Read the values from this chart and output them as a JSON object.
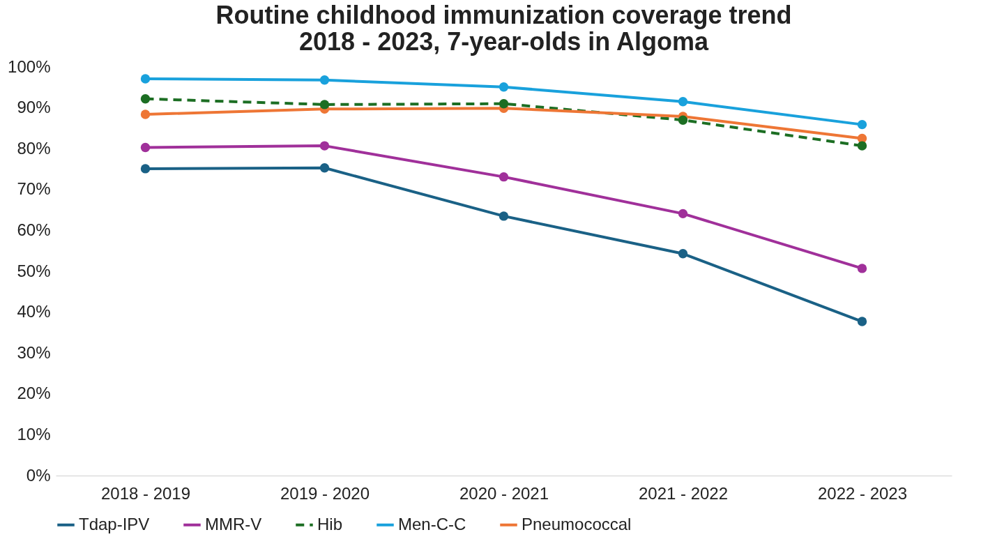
{
  "chart_data": {
    "type": "line",
    "title": "Routine childhood immunization coverage trend 2018 - 2023, 7-year-olds in Algoma",
    "categories": [
      "2018 - 2019",
      "2019 - 2020",
      "2020 - 2021",
      "2021 - 2022",
      "2022 - 2023"
    ],
    "series": [
      {
        "name": "Tdap-IPV",
        "color": "#1a6186",
        "values": [
          75.1,
          75.3,
          63.5,
          54.3,
          37.7
        ]
      },
      {
        "name": "MMR-V",
        "color": "#a0309a",
        "values": [
          80.3,
          80.7,
          73.1,
          64.1,
          50.7
        ]
      },
      {
        "name": "Hib",
        "color": "#1c6e23",
        "line_style": "dashed",
        "values": [
          92.2,
          90.8,
          91.0,
          87.0,
          80.7
        ]
      },
      {
        "name": "Men-C-C",
        "color": "#19a1dc",
        "values": [
          97.1,
          96.8,
          95.1,
          91.5,
          85.9
        ]
      },
      {
        "name": "Pneumococcal",
        "color": "#ee7635",
        "values": [
          88.4,
          89.7,
          89.9,
          87.9,
          82.5
        ]
      }
    ],
    "ylim": [
      0,
      100
    ],
    "yticks": [
      {
        "value": 0,
        "label": "0%"
      },
      {
        "value": 10,
        "label": "10%"
      },
      {
        "value": 20,
        "label": "20%"
      },
      {
        "value": 30,
        "label": "30%"
      },
      {
        "value": 40,
        "label": "40%"
      },
      {
        "value": 50,
        "label": "50%"
      },
      {
        "value": 60,
        "label": "60%"
      },
      {
        "value": 70,
        "label": "70%"
      },
      {
        "value": 80,
        "label": "80%"
      },
      {
        "value": 90,
        "label": "90%"
      },
      {
        "value": 100,
        "label": "100%"
      }
    ],
    "marker": "circle",
    "line_style": "solid",
    "grid": false,
    "legend": "bottom"
  }
}
